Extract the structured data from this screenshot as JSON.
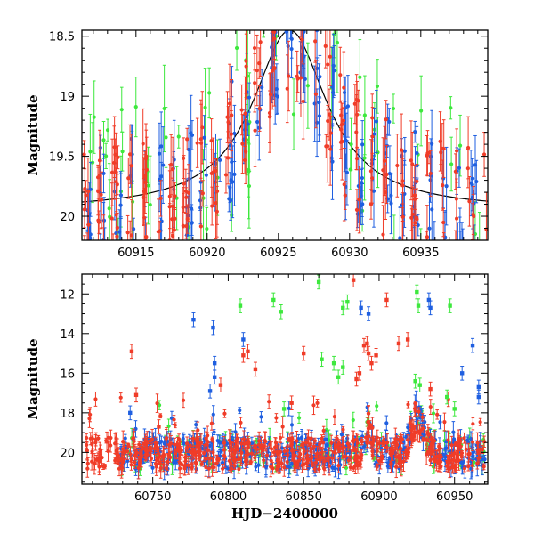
{
  "chart_data": [
    {
      "id": "zoom",
      "type": "scatter",
      "title": "",
      "xlabel": "",
      "ylabel": "Magnitude",
      "xlim": [
        60911.2,
        60939.7
      ],
      "ylim": [
        20.2,
        18.45
      ],
      "y_inverted": true,
      "x_ticks": [
        60915,
        60920,
        60925,
        60930,
        60935
      ],
      "x_tick_labels": [
        "60915",
        "60920",
        "60925",
        "60930",
        "60935"
      ],
      "y_ticks": [
        18.5,
        19,
        19.5,
        20
      ],
      "y_tick_labels": [
        "18.5",
        "19",
        "19.5",
        "20"
      ],
      "x_minor_step": 1,
      "y_minor_step": 0.1,
      "series": [
        {
          "name": "blue",
          "color": "#1f5fe0",
          "x_start": 60911.5,
          "x_end": 60939.5,
          "count": 190,
          "seed": 11
        },
        {
          "name": "green",
          "color": "#3de83d",
          "x_start": 60911.7,
          "x_end": 60939.3,
          "count": 75,
          "seed": 23
        },
        {
          "name": "red",
          "color": "#f03c28",
          "x_start": 60911.3,
          "x_end": 60939.6,
          "count": 210,
          "seed": 37
        }
      ],
      "model_curve": {
        "name": "fit",
        "color": "#000000",
        "peak_x": 60925.8,
        "base_mag": 19.95,
        "peak_mag": 18.45,
        "width": 3.2
      }
    },
    {
      "id": "full",
      "type": "scatter",
      "title": "",
      "xlabel": "HJD−2400000",
      "ylabel": "Magnitude",
      "xlim": [
        60703,
        60972
      ],
      "ylim": [
        21.6,
        11.0
      ],
      "y_inverted": true,
      "x_ticks": [
        60750,
        60800,
        60850,
        60900,
        60950
      ],
      "x_tick_labels": [
        "60750",
        "60800",
        "60850",
        "60900",
        "60950"
      ],
      "y_ticks": [
        12,
        14,
        16,
        18,
        20
      ],
      "y_tick_labels": [
        "12",
        "14",
        "16",
        "18",
        "20"
      ],
      "x_minor_step": 10,
      "y_minor_step": 0.5,
      "series": [
        {
          "name": "blue",
          "color": "#1f5fe0",
          "x_start": 60728,
          "x_end": 60970,
          "count": 420,
          "seed": 5
        },
        {
          "name": "green",
          "color": "#3de83d",
          "x_start": 60728,
          "x_end": 60970,
          "count": 120,
          "seed": 17
        },
        {
          "name": "red",
          "color": "#f03c28",
          "x_start": 60706,
          "x_end": 60970,
          "count": 560,
          "seed": 29
        }
      ],
      "outliers": [
        {
          "x": 60736,
          "y": 14.9,
          "c": "red"
        },
        {
          "x": 60739,
          "y": 17.1,
          "c": "red"
        },
        {
          "x": 60735,
          "y": 18.0,
          "c": "blue"
        },
        {
          "x": 60754,
          "y": 18.7,
          "c": "red"
        },
        {
          "x": 60777,
          "y": 13.3,
          "c": "blue"
        },
        {
          "x": 60790,
          "y": 13.7,
          "c": "blue"
        },
        {
          "x": 60791,
          "y": 15.5,
          "c": "blue"
        },
        {
          "x": 60791,
          "y": 16.2,
          "c": "blue"
        },
        {
          "x": 60788,
          "y": 16.9,
          "c": "blue"
        },
        {
          "x": 60795,
          "y": 16.6,
          "c": "red"
        },
        {
          "x": 60808,
          "y": 12.6,
          "c": "green"
        },
        {
          "x": 60810,
          "y": 14.3,
          "c": "blue"
        },
        {
          "x": 60810,
          "y": 15.1,
          "c": "red"
        },
        {
          "x": 60813,
          "y": 14.9,
          "c": "red"
        },
        {
          "x": 60818,
          "y": 15.8,
          "c": "red"
        },
        {
          "x": 60830,
          "y": 12.3,
          "c": "green"
        },
        {
          "x": 60835,
          "y": 12.9,
          "c": "green"
        },
        {
          "x": 60837,
          "y": 17.8,
          "c": "green"
        },
        {
          "x": 60842,
          "y": 17.5,
          "c": "red"
        },
        {
          "x": 60850,
          "y": 15.0,
          "c": "red"
        },
        {
          "x": 60860,
          "y": 11.4,
          "c": "green"
        },
        {
          "x": 60876,
          "y": 12.7,
          "c": "green"
        },
        {
          "x": 60879,
          "y": 12.4,
          "c": "green"
        },
        {
          "x": 60883,
          "y": 11.3,
          "c": "red"
        },
        {
          "x": 60888,
          "y": 12.7,
          "c": "blue"
        },
        {
          "x": 60890,
          "y": 14.6,
          "c": "red"
        },
        {
          "x": 60892,
          "y": 14.5,
          "c": "red"
        },
        {
          "x": 60893,
          "y": 13.0,
          "c": "blue"
        },
        {
          "x": 60893,
          "y": 15.0,
          "c": "red"
        },
        {
          "x": 60905,
          "y": 12.3,
          "c": "red"
        },
        {
          "x": 60913,
          "y": 14.5,
          "c": "red"
        },
        {
          "x": 60919,
          "y": 14.3,
          "c": "red"
        },
        {
          "x": 60862,
          "y": 15.3,
          "c": "green"
        },
        {
          "x": 60870,
          "y": 15.5,
          "c": "green"
        },
        {
          "x": 60873,
          "y": 16.2,
          "c": "green"
        },
        {
          "x": 60876,
          "y": 15.7,
          "c": "green"
        },
        {
          "x": 60885,
          "y": 16.3,
          "c": "red"
        },
        {
          "x": 60887,
          "y": 16.0,
          "c": "red"
        },
        {
          "x": 60895,
          "y": 15.5,
          "c": "red"
        },
        {
          "x": 60898,
          "y": 15.1,
          "c": "red"
        },
        {
          "x": 60925,
          "y": 11.9,
          "c": "green"
        },
        {
          "x": 60926,
          "y": 12.6,
          "c": "green"
        },
        {
          "x": 60933,
          "y": 12.3,
          "c": "blue"
        },
        {
          "x": 60934,
          "y": 12.7,
          "c": "blue"
        },
        {
          "x": 60947,
          "y": 12.6,
          "c": "green"
        },
        {
          "x": 60962,
          "y": 14.6,
          "c": "blue"
        },
        {
          "x": 60955,
          "y": 16.0,
          "c": "blue"
        },
        {
          "x": 60966,
          "y": 16.7,
          "c": "blue"
        },
        {
          "x": 60966,
          "y": 17.2,
          "c": "blue"
        },
        {
          "x": 60924,
          "y": 16.4,
          "c": "green"
        },
        {
          "x": 60927,
          "y": 16.6,
          "c": "green"
        },
        {
          "x": 60934,
          "y": 16.8,
          "c": "red"
        },
        {
          "x": 60945,
          "y": 17.2,
          "c": "green"
        },
        {
          "x": 60950,
          "y": 17.8,
          "c": "green"
        }
      ],
      "bumps": [
        {
          "peak_x": 60925,
          "peak_mag": 18.2,
          "width": 6
        },
        {
          "peak_x": 60893,
          "peak_mag": 18.8,
          "width": 3
        }
      ]
    }
  ]
}
